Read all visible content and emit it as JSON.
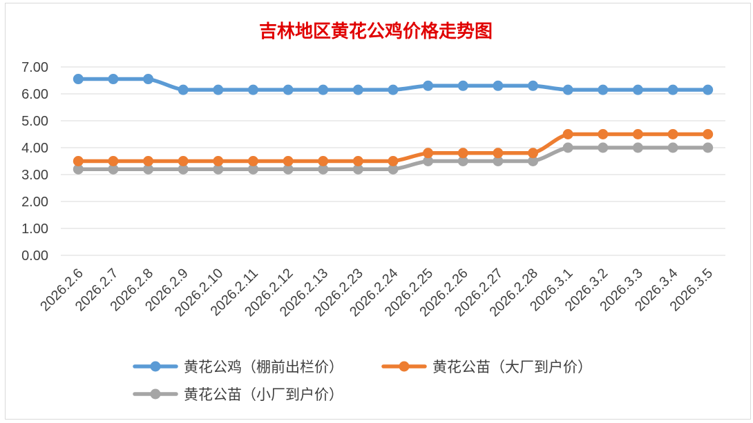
{
  "chart_data": {
    "type": "line",
    "title": "吉林地区黄花公鸡价格走势图",
    "categories": [
      "2026.2.6",
      "2026.2.7",
      "2026.2.8",
      "2026.2.9",
      "2026.2.10",
      "2026.2.11",
      "2026.2.12",
      "2026.2.13",
      "2026.2.23",
      "2026.2.24",
      "2026.2.25",
      "2026.2.26",
      "2026.2.27",
      "2026.2.28",
      "2026.3.1",
      "2026.3.2",
      "2026.3.3",
      "2026.3.4",
      "2026.3.5"
    ],
    "ylim": [
      0,
      7
    ],
    "yticks": [
      "0.00",
      "1.00",
      "2.00",
      "3.00",
      "4.00",
      "5.00",
      "6.00",
      "7.00"
    ],
    "grid": true,
    "legend_position": "bottom",
    "series": [
      {
        "name": "黄花公鸡（棚前出栏价）",
        "color": "#5b9bd5",
        "values": [
          6.55,
          6.55,
          6.55,
          6.15,
          6.15,
          6.15,
          6.15,
          6.15,
          6.15,
          6.15,
          6.3,
          6.3,
          6.3,
          6.3,
          6.15,
          6.15,
          6.15,
          6.15,
          6.15
        ]
      },
      {
        "name": "黄花公苗（大厂到户价）",
        "color": "#ed7d31",
        "values": [
          3.5,
          3.5,
          3.5,
          3.5,
          3.5,
          3.5,
          3.5,
          3.5,
          3.5,
          3.5,
          3.8,
          3.8,
          3.8,
          3.8,
          4.5,
          4.5,
          4.5,
          4.5,
          4.5
        ]
      },
      {
        "name": "黄花公苗（小厂到户价）",
        "color": "#a5a5a5",
        "values": [
          3.2,
          3.2,
          3.2,
          3.2,
          3.2,
          3.2,
          3.2,
          3.2,
          3.2,
          3.2,
          3.5,
          3.5,
          3.5,
          3.5,
          4.0,
          4.0,
          4.0,
          4.0,
          4.0
        ]
      }
    ]
  }
}
